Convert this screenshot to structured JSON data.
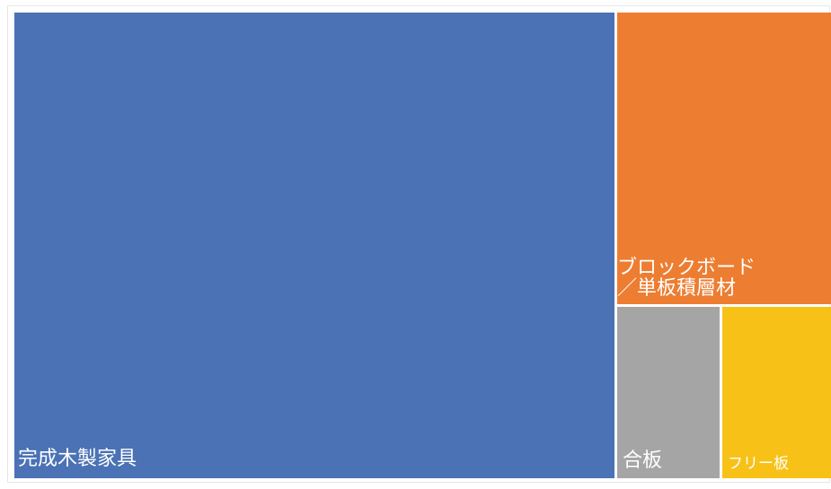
{
  "chart_data": {
    "type": "treemap",
    "items": [
      {
        "name": "完成木製家具",
        "value": 1000,
        "color": "#4A72B5"
      },
      {
        "name": "ブロックボード\n／単板積層材",
        "value": 225,
        "color": "#ED7D31"
      },
      {
        "name": "合板",
        "value": 64,
        "color": "#A5A5A5"
      },
      {
        "name": "フリー板",
        "value": 68,
        "color": "#F8C117"
      }
    ]
  }
}
